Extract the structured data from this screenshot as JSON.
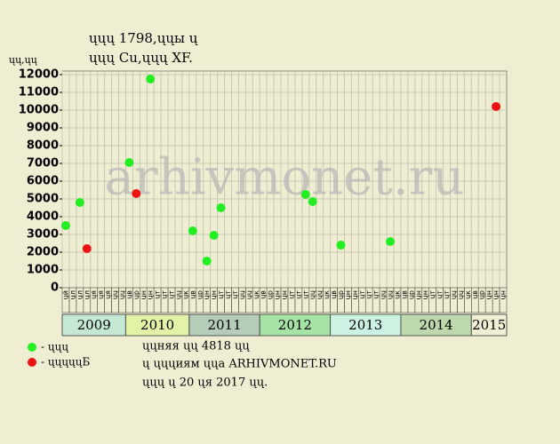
{
  "chart_data": {
    "type": "scatter",
    "title": "ųųų 1798,ųųы ų",
    "subtitle": "ųųų Cu,ųųų XF.",
    "y_label": "ųų,ųų",
    "watermark": "arhivmonet.ru",
    "categories": [
      "ųй",
      "ųл",
      "ųл",
      "ųл",
      "ųя",
      "ųя",
      "ųя",
      "ųų",
      "ųų",
      "ųв",
      "ųр",
      "ųн",
      "ųн",
      "ųт",
      "ųт",
      "ųт",
      "ųų",
      "ųк",
      "ųв",
      "ųр",
      "ųн",
      "ųн",
      "ųт",
      "ųт",
      "ųт",
      "ųų",
      "ųų",
      "ųк",
      "ųв",
      "ųр",
      "ųн",
      "ųн",
      "ųт",
      "ųт",
      "ųт",
      "ųų",
      "ųų",
      "ųк",
      "ųв",
      "ųр",
      "ųн",
      "ųн",
      "ųт",
      "ųт",
      "ųт",
      "ųų",
      "ųų",
      "ųк",
      "ųв",
      "ųр",
      "ųн",
      "ųн",
      "ųт",
      "ųт",
      "ųт",
      "ųų",
      "ųų",
      "ųк",
      "ųв",
      "ųр",
      "ųн",
      "ųн",
      "ųн"
    ],
    "years": [
      "2009",
      "2010",
      "2011",
      "2012",
      "2013",
      "2014",
      "2015"
    ],
    "year_months": [
      9,
      9,
      10,
      10,
      10,
      10,
      5
    ],
    "year_colors": [
      "#c4e8d4",
      "#e2f2a6",
      "#b4ccb8",
      "#a6e4a6",
      "#ccf2e2",
      "#bcd8ac",
      "#f2f0d4"
    ],
    "series": [
      {
        "name": "- ųųų",
        "color": "#22ee22",
        "values": [
          3500,
          null,
          4800,
          null,
          null,
          null,
          null,
          null,
          null,
          7050,
          null,
          null,
          11750,
          null,
          null,
          null,
          null,
          null,
          3200,
          null,
          1500,
          2950,
          4500,
          null,
          null,
          null,
          null,
          null,
          null,
          null,
          null,
          null,
          null,
          null,
          5250,
          4850,
          null,
          null,
          null,
          2400,
          null,
          null,
          null,
          null,
          null,
          null,
          2600,
          null,
          null,
          null,
          null,
          null,
          null,
          null,
          null,
          null,
          null,
          null,
          null,
          null,
          null,
          null,
          null
        ]
      },
      {
        "name": "- ųųųųųБ",
        "color": "#ee1111",
        "values": [
          null,
          null,
          null,
          2200,
          null,
          null,
          null,
          null,
          null,
          null,
          5300,
          null,
          null,
          null,
          null,
          null,
          null,
          null,
          null,
          null,
          null,
          null,
          null,
          null,
          null,
          null,
          null,
          null,
          null,
          null,
          null,
          null,
          null,
          null,
          null,
          null,
          null,
          null,
          null,
          null,
          null,
          null,
          null,
          null,
          null,
          null,
          null,
          null,
          null,
          null,
          null,
          null,
          null,
          null,
          null,
          null,
          null,
          null,
          null,
          null,
          null,
          10200,
          null
        ]
      }
    ],
    "ylim": [
      0,
      12000
    ],
    "yticks": [
      0,
      1000,
      2000,
      3000,
      4000,
      5000,
      6000,
      7000,
      8000,
      9000,
      10000,
      11000,
      12000
    ],
    "grid": true,
    "notes": [
      "ųųняя ųų 4818 ųų",
      "ų ųųųиям ųųа ARHIVMONET.RU",
      "ųųų ų 20 ųя 2017 ųų."
    ]
  }
}
